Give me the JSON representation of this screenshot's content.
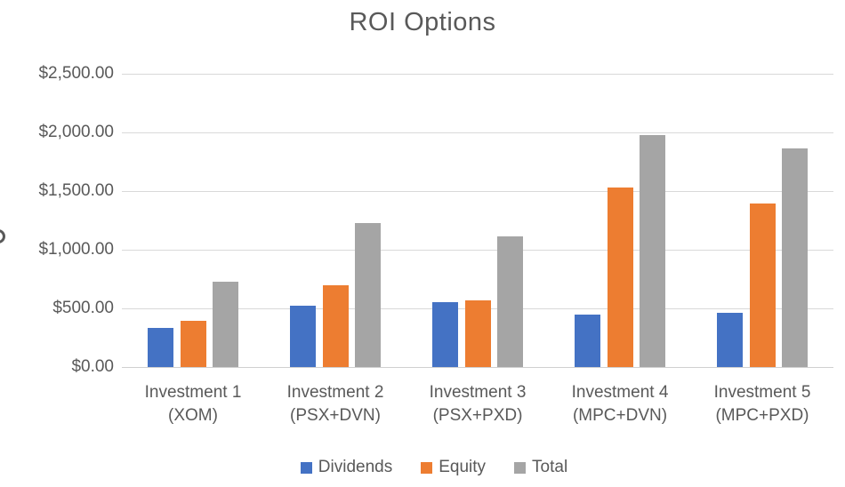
{
  "chart_data": {
    "type": "bar",
    "title": "ROI Options",
    "xlabel": "",
    "ylabel": "",
    "categories": [
      {
        "line1": "Investment 1",
        "line2": "(XOM)"
      },
      {
        "line1": "Investment 2",
        "line2": "(PSX+DVN)"
      },
      {
        "line1": "Investment 3",
        "line2": "(PSX+PXD)"
      },
      {
        "line1": "Investment 4",
        "line2": "(MPC+DVN)"
      },
      {
        "line1": "Investment 5",
        "line2": "(MPC+PXD)"
      }
    ],
    "series": [
      {
        "name": "Dividends",
        "color": "#4472C4",
        "values": [
          330,
          525,
          550,
          445,
          465
        ]
      },
      {
        "name": "Equity",
        "color": "#ED7D31",
        "values": [
          395,
          700,
          565,
          1530,
          1395
        ]
      },
      {
        "name": "Total",
        "color": "#A5A5A5",
        "values": [
          725,
          1225,
          1115,
          1975,
          1860
        ]
      }
    ],
    "y_ticks": [
      {
        "label": "$0.00",
        "value": 0
      },
      {
        "label": "$500.00",
        "value": 500
      },
      {
        "label": "$1,000.00",
        "value": 1000
      },
      {
        "label": "$1,500.00",
        "value": 1500
      },
      {
        "label": "$2,000.00",
        "value": 2000
      },
      {
        "label": "$2,500.00",
        "value": 2500
      }
    ],
    "ylim": [
      0,
      2500
    ],
    "grid": true,
    "legend_position": "bottom",
    "colors": {
      "text": "#595959",
      "gridline": "#D9D9D9",
      "background": "#FFFFFF"
    }
  }
}
